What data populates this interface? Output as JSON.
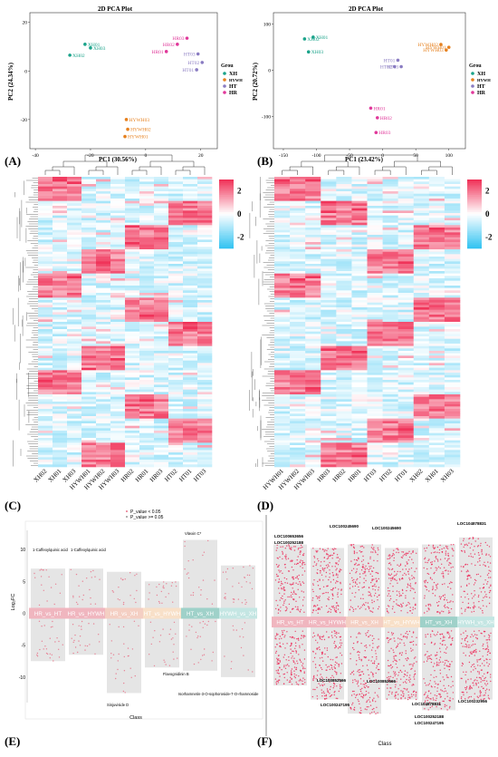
{
  "panels": {
    "A": {
      "label": "(A)",
      "chart_data": {
        "type": "scatter",
        "title": "2D PCA Plot",
        "xlabel": "PC1 (30.56%)",
        "ylabel": "PC2 (24.34%)",
        "xticks": [
          "-40",
          "-20",
          "0",
          "20"
        ],
        "yticks": [
          "20",
          "0",
          "-20"
        ],
        "xlim": [
          -42,
          26
        ],
        "ylim": [
          -32,
          24
        ],
        "legend": {
          "title": "Grou",
          "items": [
            "XH",
            "HYWH",
            "HT",
            "HR"
          ],
          "position": "right"
        },
        "series": [
          {
            "name": "XH",
            "color": "#1aa38a",
            "points": [
              {
                "label": "XH01",
                "x": -22,
                "y": 11
              },
              {
                "label": "XH02",
                "x": -27.5,
                "y": 6.5
              },
              {
                "label": "XH03",
                "x": -20,
                "y": 9.5
              }
            ]
          },
          {
            "name": "HYWH",
            "color": "#e6811f",
            "points": [
              {
                "label": "HYWH03",
                "x": -7,
                "y": -20
              },
              {
                "label": "HYWH02",
                "x": -6.5,
                "y": -24
              },
              {
                "label": "HYWH01",
                "x": -7.5,
                "y": -27
              }
            ]
          },
          {
            "name": "HT",
            "color": "#8a7cc2",
            "points": [
              {
                "label": "HT03",
                "x": 19,
                "y": 7
              },
              {
                "label": "HT02",
                "x": 20.5,
                "y": 3.5
              },
              {
                "label": "HT01",
                "x": 18.5,
                "y": 0.5
              }
            ]
          },
          {
            "name": "HR",
            "color": "#e0389a",
            "points": [
              {
                "label": "HR03",
                "x": 15,
                "y": 13.5
              },
              {
                "label": "HR02",
                "x": 11.5,
                "y": 11
              },
              {
                "label": "HR01",
                "x": 7.5,
                "y": 8
              }
            ]
          }
        ]
      }
    },
    "B": {
      "label": "(B)",
      "chart_data": {
        "type": "scatter",
        "title": "2D PCA Plot",
        "xlabel": "PC1 (23.42%)",
        "ylabel": "PC2 (20.72%)",
        "xticks": [
          "-150",
          "-100",
          "-50",
          "0",
          "50",
          "100"
        ],
        "yticks": [
          "100",
          "0",
          "-100"
        ],
        "xlim": [
          -165,
          125
        ],
        "ylim": [
          -170,
          125
        ],
        "legend": {
          "title": "Grou",
          "items": [
            "XH",
            "HYWH",
            "HT",
            "HR"
          ],
          "position": "right"
        },
        "series": [
          {
            "name": "XH",
            "color": "#1aa38a",
            "points": [
              {
                "label": "XH01",
                "x": -105,
                "y": 72
              },
              {
                "label": "XH02",
                "x": -118,
                "y": 68
              },
              {
                "label": "XH03",
                "x": -112,
                "y": 40
              }
            ]
          },
          {
            "name": "HYWH",
            "color": "#e6811f",
            "points": [
              {
                "label": "HYWH02",
                "x": 88,
                "y": 56
              },
              {
                "label": "HYWH01",
                "x": 100,
                "y": 50
              },
              {
                "label": "HYWH03",
                "x": 96,
                "y": 44
              }
            ]
          },
          {
            "name": "HT",
            "color": "#8a7cc2",
            "points": [
              {
                "label": "HT01",
                "x": 23,
                "y": 22
              },
              {
                "label": "HT02",
                "x": 18,
                "y": 8
              },
              {
                "label": "HT03",
                "x": 28,
                "y": 8
              }
            ]
          },
          {
            "name": "HR",
            "color": "#e0389a",
            "points": [
              {
                "label": "HR01",
                "x": -18,
                "y": -82
              },
              {
                "label": "HR02",
                "x": -8,
                "y": -103
              },
              {
                "label": "HR03",
                "x": -10,
                "y": -135
              }
            ]
          }
        ]
      }
    },
    "C": {
      "label": "(C)",
      "chart_data": {
        "type": "heatmap",
        "columns": [
          "XH02",
          "XH01",
          "XH03",
          "HYWH01",
          "HYWH02",
          "HYWH03",
          "HR02",
          "HR01",
          "HR03",
          "HT02",
          "HT01",
          "HT03"
        ],
        "column_groups": [
          [
            0,
            1,
            2
          ],
          [
            3,
            4,
            5
          ],
          [
            6,
            7,
            8
          ],
          [
            9,
            10,
            11
          ]
        ],
        "scale": {
          "ticks": [
            "2",
            "0",
            "-2"
          ],
          "min": -3,
          "max": 3,
          "low_color": "#35c4f2",
          "mid_color": "#ffffff",
          "high_color": "#f0345a"
        }
      }
    },
    "D": {
      "label": "(D)",
      "chart_data": {
        "type": "heatmap",
        "columns": [
          "HYWH01",
          "HYWH02",
          "HYWH03",
          "HR03",
          "HR02",
          "HR01",
          "HT03",
          "HT02",
          "HT01",
          "XH02",
          "XH01",
          "XH03"
        ],
        "column_groups": [
          [
            0,
            1,
            2
          ],
          [
            3,
            4,
            5
          ],
          [
            6,
            7,
            8
          ],
          [
            9,
            10,
            11
          ]
        ],
        "scale": {
          "ticks": [
            "2",
            "0",
            "-2"
          ],
          "min": -3,
          "max": 3,
          "low_color": "#35c4f2",
          "mid_color": "#ffffff",
          "high_color": "#f0345a"
        }
      }
    },
    "E": {
      "label": "(E)",
      "chart_data": {
        "type": "scatter",
        "xlabel": "Class",
        "ylabel": "Log₂FC",
        "yticks": [
          "10",
          "5",
          "0",
          "-5",
          "-10"
        ],
        "ylim": [
          -14,
          13
        ],
        "legend": {
          "items": [
            "P_value < 0.05",
            "P_value >= 0.05"
          ],
          "position": "top"
        },
        "classes": [
          "HR_vs_HT",
          "HR_vs_HYWH",
          "HR_vs_XH",
          "HT_vs_HYWH",
          "HT_vs_XH",
          "HYWH_vs_XH"
        ],
        "class_ranges": [
          [
            -7.5,
            7
          ],
          [
            -6.5,
            7
          ],
          [
            -12.5,
            6.5
          ],
          [
            -8.5,
            5
          ],
          [
            -9,
            11.5
          ],
          [
            -10,
            7.5
          ]
        ],
        "band_colors": [
          "#f0b6bf",
          "#f0b6bf",
          "#f4cfc3",
          "#f8e0c8",
          "#9fd1c9",
          "#c4e6e3"
        ],
        "annotations": [
          "1-Caffeoylquinic acid",
          "1-Caffeoylquinic acid",
          "Sinjuviside D",
          "Vitexin C*",
          "Flavognidinin B",
          "Isorhamnetin-3-O-sophoroside-7-O-rhamnoside"
        ]
      }
    },
    "F": {
      "label": "(F)",
      "chart_data": {
        "type": "scatter",
        "xlabel": "Class",
        "classes": [
          "HR_vs_HT",
          "HR_vs_HYWH",
          "HR_vs_XH",
          "HT_vs_HYWH",
          "HT_vs_XH",
          "HYWH_vs_XH"
        ],
        "class_ranges": [
          [
            -9,
            11
          ],
          [
            -11,
            10.5
          ],
          [
            -13,
            11
          ],
          [
            -11,
            10.5
          ],
          [
            -12.5,
            11
          ],
          [
            -11,
            12
          ]
        ],
        "band_colors": [
          "#f0b6bf",
          "#f0b6bf",
          "#f4cfc3",
          "#f8e0c8",
          "#9fd1c9",
          "#c4e6e3"
        ],
        "annotations": [
          "LOC100653656",
          "LOC100252188",
          "LOC100245690",
          "LOC100245690",
          "LOC104878831",
          "LOC100852566",
          "LOC100247195",
          "LOC100852566",
          "LOC104878831",
          "LOC100252188",
          "LOC100247195",
          "LOC100232956"
        ]
      }
    }
  }
}
